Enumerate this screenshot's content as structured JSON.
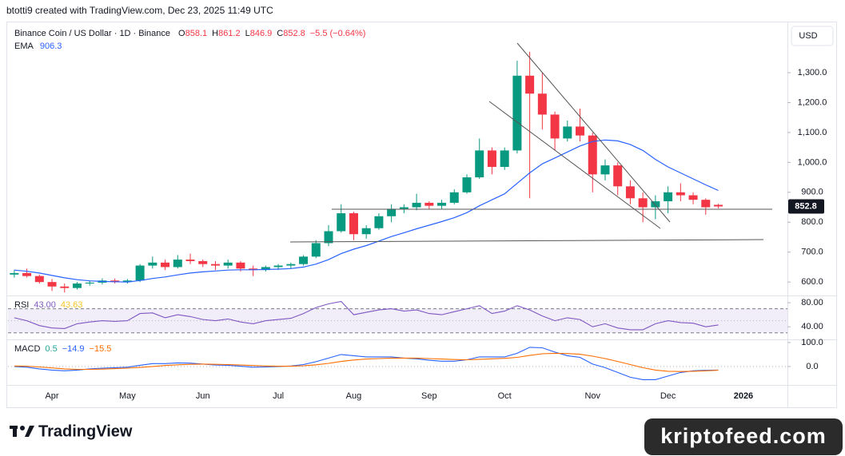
{
  "header": {
    "attribution": "btotti9 created with TradingView.com, Dec 23, 2025 11:49 UTC",
    "brand": "TradingView",
    "watermark": "kriptofeed.com"
  },
  "chart_data": [
    {
      "type": "candlestick",
      "title": "Binance Coin / US Dollar · 1D · Binance",
      "ohlc": [
        {
          "label": "O",
          "value": "858.1"
        },
        {
          "label": "H",
          "value": "861.2"
        },
        {
          "label": "L",
          "value": "846.9"
        },
        {
          "label": "C",
          "value": "852.8"
        }
      ],
      "change": "−5.5 (−0.64%)",
      "currency": "USD",
      "categories": [
        null,
        null,
        null,
        "Apr",
        null,
        null,
        null,
        null,
        null,
        "May",
        null,
        null,
        null,
        null,
        null,
        "Jun",
        null,
        null,
        null,
        null,
        null,
        "Jul",
        null,
        null,
        null,
        null,
        null,
        "Aug",
        null,
        null,
        null,
        null,
        null,
        "Sep",
        null,
        null,
        null,
        null,
        null,
        "Oct",
        null,
        null,
        null,
        null,
        null,
        null,
        "Nov",
        null,
        null,
        null,
        null,
        null,
        "Dec",
        null,
        null,
        null,
        null,
        null,
        "2026",
        null,
        null,
        null
      ],
      "open": [
        625,
        630,
        620,
        600,
        585,
        580,
        595,
        598,
        605,
        600,
        605,
        655,
        665,
        650,
        675,
        670,
        660,
        655,
        665,
        645,
        640,
        650,
        655,
        660,
        685,
        730,
        770,
        830,
        760,
        780,
        820,
        845,
        850,
        865,
        855,
        865,
        900,
        950,
        1040,
        985,
        1040,
        1290,
        1230,
        1160,
        1080,
        1120,
        1090,
        960,
        990,
        920,
        880,
        850,
        870,
        900,
        890,
        875,
        858.1,
        null,
        null,
        null,
        null,
        null
      ],
      "high": [
        640,
        645,
        625,
        610,
        595,
        600,
        605,
        612,
        612,
        610,
        660,
        685,
        675,
        690,
        695,
        675,
        670,
        675,
        670,
        655,
        655,
        660,
        665,
        690,
        740,
        790,
        860,
        835,
        790,
        830,
        860,
        860,
        895,
        870,
        875,
        910,
        960,
        1080,
        1050,
        1050,
        1340,
        1370,
        1300,
        1170,
        1140,
        1180,
        1100,
        1010,
        1000,
        940,
        900,
        890,
        920,
        930,
        900,
        880,
        861.2,
        null,
        null,
        null,
        null,
        null
      ],
      "low": [
        615,
        615,
        595,
        570,
        565,
        575,
        588,
        592,
        595,
        595,
        600,
        645,
        640,
        645,
        660,
        650,
        640,
        645,
        635,
        620,
        635,
        640,
        645,
        655,
        680,
        720,
        765,
        740,
        745,
        775,
        800,
        830,
        840,
        845,
        845,
        860,
        895,
        945,
        960,
        975,
        1030,
        880,
        1110,
        1040,
        1070,
        1070,
        900,
        940,
        890,
        860,
        800,
        810,
        830,
        870,
        860,
        825,
        846.9,
        null,
        null,
        null,
        null,
        null
      ],
      "close": [
        630,
        620,
        600,
        585,
        580,
        595,
        598,
        605,
        600,
        605,
        655,
        665,
        650,
        675,
        670,
        660,
        655,
        665,
        645,
        640,
        650,
        655,
        660,
        685,
        730,
        770,
        830,
        760,
        780,
        820,
        845,
        850,
        865,
        855,
        865,
        900,
        950,
        1040,
        985,
        1040,
        1290,
        1230,
        1160,
        1080,
        1120,
        1090,
        960,
        990,
        920,
        880,
        850,
        870,
        900,
        890,
        875,
        850,
        852.8,
        null,
        null,
        null,
        null,
        null
      ],
      "up_color": "#089981",
      "down_color": "#f23645",
      "series": [
        {
          "name": "EMA",
          "color": "#2962ff",
          "values": [
            640,
            636,
            630,
            622,
            614,
            608,
            604,
            602,
            601,
            600,
            605,
            612,
            617,
            624,
            630,
            634,
            637,
            640,
            641,
            641,
            642,
            643,
            645,
            650,
            660,
            675,
            695,
            710,
            722,
            737,
            752,
            765,
            778,
            790,
            802,
            815,
            832,
            855,
            875,
            895,
            930,
            965,
            995,
            1015,
            1035,
            1055,
            1070,
            1075,
            1072,
            1060,
            1040,
            1010,
            985,
            965,
            945,
            925,
            906.3,
            null,
            null,
            null,
            null,
            null
          ]
        }
      ],
      "ylim": [
        555,
        1463
      ],
      "yticks": [
        {
          "value": 600,
          "label": "600.0"
        },
        {
          "value": 700,
          "label": "700.0"
        },
        {
          "value": 800,
          "label": "800.0"
        },
        {
          "value": 900,
          "label": "900.0"
        },
        {
          "value": 1000,
          "label": "1,000.0"
        },
        {
          "value": 1100,
          "label": "1,100.0"
        },
        {
          "value": 1200,
          "label": "1,200.0"
        },
        {
          "value": 1300,
          "label": "1,300.0"
        }
      ],
      "grid": false
    },
    {
      "type": "line",
      "title": "RSI",
      "legend_values": [
        {
          "text": "43.00",
          "color": "#7e57c2"
        },
        {
          "text": "43.63",
          "color": "#f7c325"
        }
      ],
      "series": [
        {
          "color": "#7e57c2",
          "values": [
            55,
            50,
            42,
            38,
            37,
            45,
            48,
            50,
            49,
            50,
            62,
            63,
            55,
            60,
            57,
            52,
            50,
            53,
            48,
            45,
            50,
            52,
            54,
            62,
            72,
            78,
            82,
            60,
            64,
            68,
            70,
            66,
            68,
            62,
            60,
            65,
            70,
            75,
            62,
            66,
            75,
            68,
            58,
            50,
            55,
            52,
            40,
            45,
            38,
            35,
            35,
            45,
            50,
            47,
            46,
            40,
            43,
            null,
            null,
            null,
            null,
            null
          ]
        }
      ],
      "band": [
        30,
        70
      ],
      "midline": 50,
      "ylim": [
        19,
        92
      ],
      "yticks": [
        {
          "value": 40,
          "label": "40.00"
        },
        {
          "value": 80,
          "label": "80.00"
        }
      ]
    },
    {
      "type": "line",
      "title": "MACD",
      "legend_values": [
        {
          "text": "0.5",
          "color": "#26a69a"
        },
        {
          "text": "−14.9",
          "color": "#2962ff"
        },
        {
          "text": "−15.5",
          "color": "#ff6d00"
        }
      ],
      "series": [
        {
          "color": "#2962ff",
          "values": [
            0,
            -3,
            -10,
            -15,
            -18,
            -15,
            -10,
            -7,
            -5,
            -3,
            5,
            12,
            12,
            15,
            14,
            10,
            6,
            5,
            1,
            -3,
            -2,
            0,
            2,
            8,
            20,
            35,
            50,
            45,
            40,
            40,
            40,
            35,
            32,
            26,
            22,
            22,
            28,
            40,
            40,
            40,
            55,
            80,
            78,
            60,
            45,
            38,
            10,
            -5,
            -25,
            -45,
            -55,
            -55,
            -40,
            -25,
            -18,
            -16,
            -14.9,
            null,
            null,
            null,
            null,
            null
          ]
        },
        {
          "color": "#ff6d00",
          "values": [
            2,
            1,
            -2,
            -6,
            -10,
            -12,
            -12,
            -11,
            -9,
            -7,
            -4,
            0,
            4,
            7,
            9,
            10,
            9,
            8,
            6,
            4,
            2,
            1,
            1,
            3,
            7,
            13,
            21,
            27,
            31,
            33,
            35,
            35,
            35,
            33,
            31,
            29,
            28,
            30,
            32,
            34,
            38,
            46,
            53,
            55,
            54,
            51,
            43,
            33,
            21,
            8,
            -5,
            -15,
            -20,
            -21,
            -20,
            -18,
            -15.5,
            null,
            null,
            null,
            null,
            null
          ]
        }
      ],
      "ylim": [
        -77,
        113
      ],
      "yticks": [
        {
          "value": 0,
          "label": "0.0"
        },
        {
          "value": 100,
          "label": "100.0"
        }
      ]
    }
  ]
}
